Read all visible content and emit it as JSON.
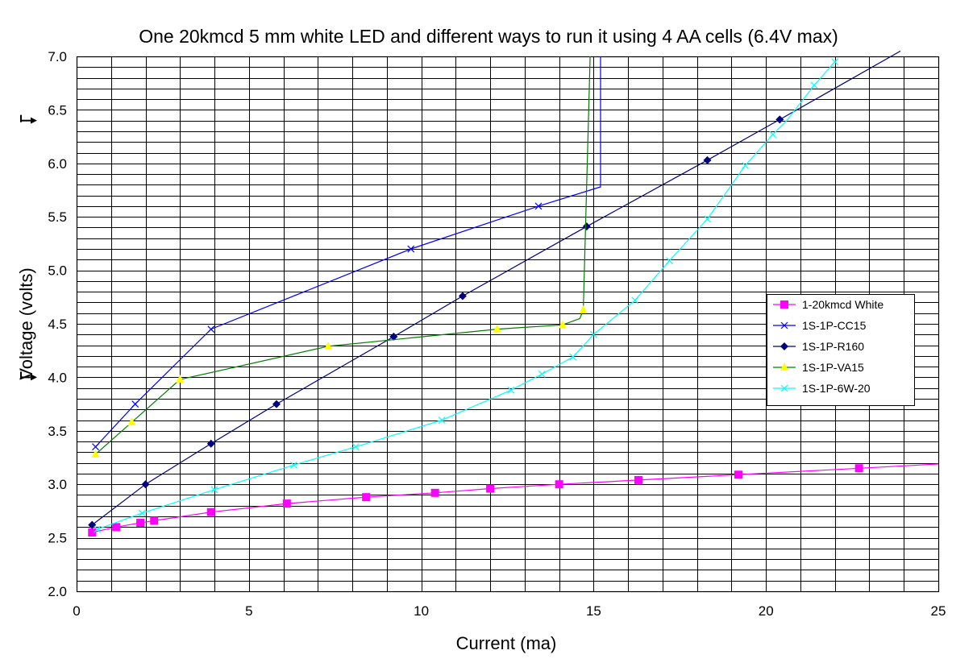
{
  "chart_data": {
    "type": "line",
    "title": "One 20kmcd 5 mm white LED and different ways to run it using 4 AA cells (6.4V max)",
    "xlabel": "Current (ma)",
    "ylabel": "Voltage (volts)",
    "xlim": [
      0,
      25
    ],
    "ylim": [
      2.0,
      7.0
    ],
    "x_ticks": [
      "0",
      "5",
      "10",
      "15",
      "20",
      "25"
    ],
    "y_ticks": [
      "2.0",
      "2.5",
      "3.0",
      "3.5",
      "4.0",
      "4.5",
      "5.0",
      "5.5",
      "6.0",
      "6.5",
      "7.0"
    ],
    "x_major_step": 1,
    "y_minor_step": 0.1,
    "arrow_markers_at_voltage": [
      6.4,
      4.0
    ],
    "legend_position": "right",
    "series": [
      {
        "name": "1-20kmcd White",
        "color": "#ff00ff",
        "marker": "square",
        "points": [
          [
            0.45,
            2.55
          ],
          [
            1.15,
            2.6
          ],
          [
            1.85,
            2.64
          ],
          [
            2.25,
            2.66
          ],
          [
            3.9,
            2.74
          ],
          [
            6.1,
            2.82
          ],
          [
            8.4,
            2.88
          ],
          [
            10.4,
            2.92
          ],
          [
            12.0,
            2.96
          ],
          [
            14.0,
            3.0
          ],
          [
            16.3,
            3.04
          ],
          [
            19.2,
            3.09
          ],
          [
            22.7,
            3.15
          ],
          [
            25.0,
            3.19
          ]
        ],
        "marker_points": [
          [
            0.45,
            2.55
          ],
          [
            1.15,
            2.6
          ],
          [
            1.85,
            2.64
          ],
          [
            2.25,
            2.66
          ],
          [
            3.9,
            2.74
          ],
          [
            6.1,
            2.82
          ],
          [
            8.4,
            2.88
          ],
          [
            10.4,
            2.92
          ],
          [
            12.0,
            2.96
          ],
          [
            14.0,
            3.0
          ],
          [
            16.3,
            3.04
          ],
          [
            19.2,
            3.09
          ],
          [
            22.7,
            3.15
          ]
        ]
      },
      {
        "name": "1S-1P-CC15",
        "color": "#0000ff",
        "marker": "x",
        "points": [
          [
            0.55,
            3.35
          ],
          [
            1.7,
            3.75
          ],
          [
            3.9,
            4.45
          ],
          [
            9.7,
            5.2
          ],
          [
            13.4,
            5.6
          ],
          [
            15.2,
            5.78
          ],
          [
            15.2,
            7.0
          ]
        ],
        "marker_points": [
          [
            0.55,
            3.35
          ],
          [
            1.7,
            3.75
          ],
          [
            3.9,
            4.45
          ],
          [
            9.7,
            5.2
          ],
          [
            13.4,
            5.6
          ]
        ]
      },
      {
        "name": "1S-1P-R160",
        "color": "#000080",
        "marker": "diamond",
        "points": [
          [
            0.45,
            2.62
          ],
          [
            2.0,
            3.0
          ],
          [
            3.9,
            3.38
          ],
          [
            5.8,
            3.75
          ],
          [
            9.2,
            4.38
          ],
          [
            11.2,
            4.76
          ],
          [
            14.8,
            5.41
          ],
          [
            18.3,
            6.03
          ],
          [
            20.4,
            6.41
          ],
          [
            23.9,
            7.05
          ]
        ],
        "marker_points": [
          [
            0.45,
            2.62
          ],
          [
            2.0,
            3.0
          ],
          [
            3.9,
            3.38
          ],
          [
            5.8,
            3.75
          ],
          [
            9.2,
            4.38
          ],
          [
            11.2,
            4.76
          ],
          [
            14.8,
            5.41
          ],
          [
            18.3,
            6.03
          ],
          [
            20.4,
            6.41
          ]
        ]
      },
      {
        "name": "1S-1P-VA15",
        "color": "#008000",
        "marker": "triangle",
        "marker_color": "#ffff00",
        "points": [
          [
            0.55,
            3.28
          ],
          [
            1.6,
            3.58
          ],
          [
            3.0,
            3.98
          ],
          [
            7.3,
            4.29
          ],
          [
            12.2,
            4.45
          ],
          [
            14.1,
            4.49
          ],
          [
            14.6,
            4.55
          ],
          [
            14.7,
            4.63
          ],
          [
            14.9,
            7.0
          ]
        ],
        "marker_points": [
          [
            0.55,
            3.28
          ],
          [
            1.6,
            3.58
          ],
          [
            3.0,
            3.98
          ],
          [
            7.3,
            4.29
          ],
          [
            12.2,
            4.45
          ],
          [
            14.1,
            4.49
          ],
          [
            14.7,
            4.63
          ]
        ]
      },
      {
        "name": "1S-1P-6W-20",
        "color": "#00ffff",
        "marker": "x",
        "points": [
          [
            0.6,
            2.58
          ],
          [
            1.9,
            2.73
          ],
          [
            4.0,
            2.95
          ],
          [
            6.3,
            3.18
          ],
          [
            8.1,
            3.35
          ],
          [
            10.6,
            3.6
          ],
          [
            12.6,
            3.88
          ],
          [
            13.5,
            4.03
          ],
          [
            14.4,
            4.19
          ],
          [
            15.0,
            4.4
          ],
          [
            16.2,
            4.72
          ],
          [
            17.2,
            5.09
          ],
          [
            18.3,
            5.48
          ],
          [
            19.4,
            5.98
          ],
          [
            20.2,
            6.27
          ],
          [
            20.6,
            6.4
          ],
          [
            21.4,
            6.73
          ],
          [
            22.0,
            6.95
          ]
        ],
        "marker_points": [
          [
            0.6,
            2.58
          ],
          [
            1.9,
            2.73
          ],
          [
            4.0,
            2.95
          ],
          [
            6.3,
            3.18
          ],
          [
            8.1,
            3.35
          ],
          [
            10.6,
            3.6
          ],
          [
            12.6,
            3.88
          ],
          [
            13.5,
            4.03
          ],
          [
            14.4,
            4.19
          ],
          [
            15.0,
            4.4
          ],
          [
            16.2,
            4.72
          ],
          [
            17.2,
            5.09
          ],
          [
            18.3,
            5.48
          ],
          [
            19.4,
            5.98
          ],
          [
            20.2,
            6.27
          ],
          [
            21.4,
            6.73
          ],
          [
            22.0,
            6.95
          ]
        ]
      }
    ]
  }
}
